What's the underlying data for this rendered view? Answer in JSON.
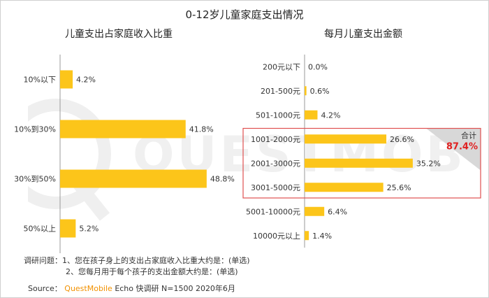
{
  "title": "0-12岁儿童家庭支出情况",
  "colors": {
    "bar": "#fcc51a",
    "highlight_border": "#e05050",
    "total_value": "#e02020",
    "axis": "#999999"
  },
  "chart_data": [
    {
      "type": "bar",
      "orientation": "horizontal",
      "title": "儿童支出占家庭收入比重",
      "categories": [
        "10%以下",
        "10%到30%",
        "30%到50%",
        "50%以上"
      ],
      "values": [
        4.2,
        41.8,
        48.8,
        5.2
      ],
      "value_labels": [
        "4.2%",
        "41.8%",
        "48.8%",
        "5.2%"
      ],
      "unit": "%"
    },
    {
      "type": "bar",
      "orientation": "horizontal",
      "title": "每月儿童支出金额",
      "categories": [
        "200元以下",
        "201-500元",
        "501-1000元",
        "1001-2000元",
        "2001-3000元",
        "3001-5000元",
        "5001-10000元",
        "10000元以上"
      ],
      "values": [
        0.0,
        0.6,
        4.2,
        26.6,
        35.2,
        25.6,
        6.4,
        1.4
      ],
      "value_labels": [
        "0.0%",
        "0.6%",
        "4.2%",
        "26.6%",
        "35.2%",
        "25.6%",
        "6.4%",
        "1.4%"
      ],
      "unit": "%",
      "highlight": {
        "categories": [
          "1001-2000元",
          "2001-3000元",
          "3001-5000元"
        ],
        "total_label": "合计",
        "total_value": "87.4%"
      }
    }
  ],
  "notes": {
    "line1": "调研问题：1、您在孩子身上的支出占家庭收入比重大约是：(单选)",
    "line2": "2、您每月用于每个孩子的支出金额大约是：(单选)"
  },
  "source": {
    "prefix": "Source：",
    "brand": "QuestMobile",
    "rest": "Echo 快调研 N=1500 2020年6月"
  },
  "watermark": {
    "text": "QUESTMOBILE",
    "icon": "questmobile-logo-icon"
  }
}
